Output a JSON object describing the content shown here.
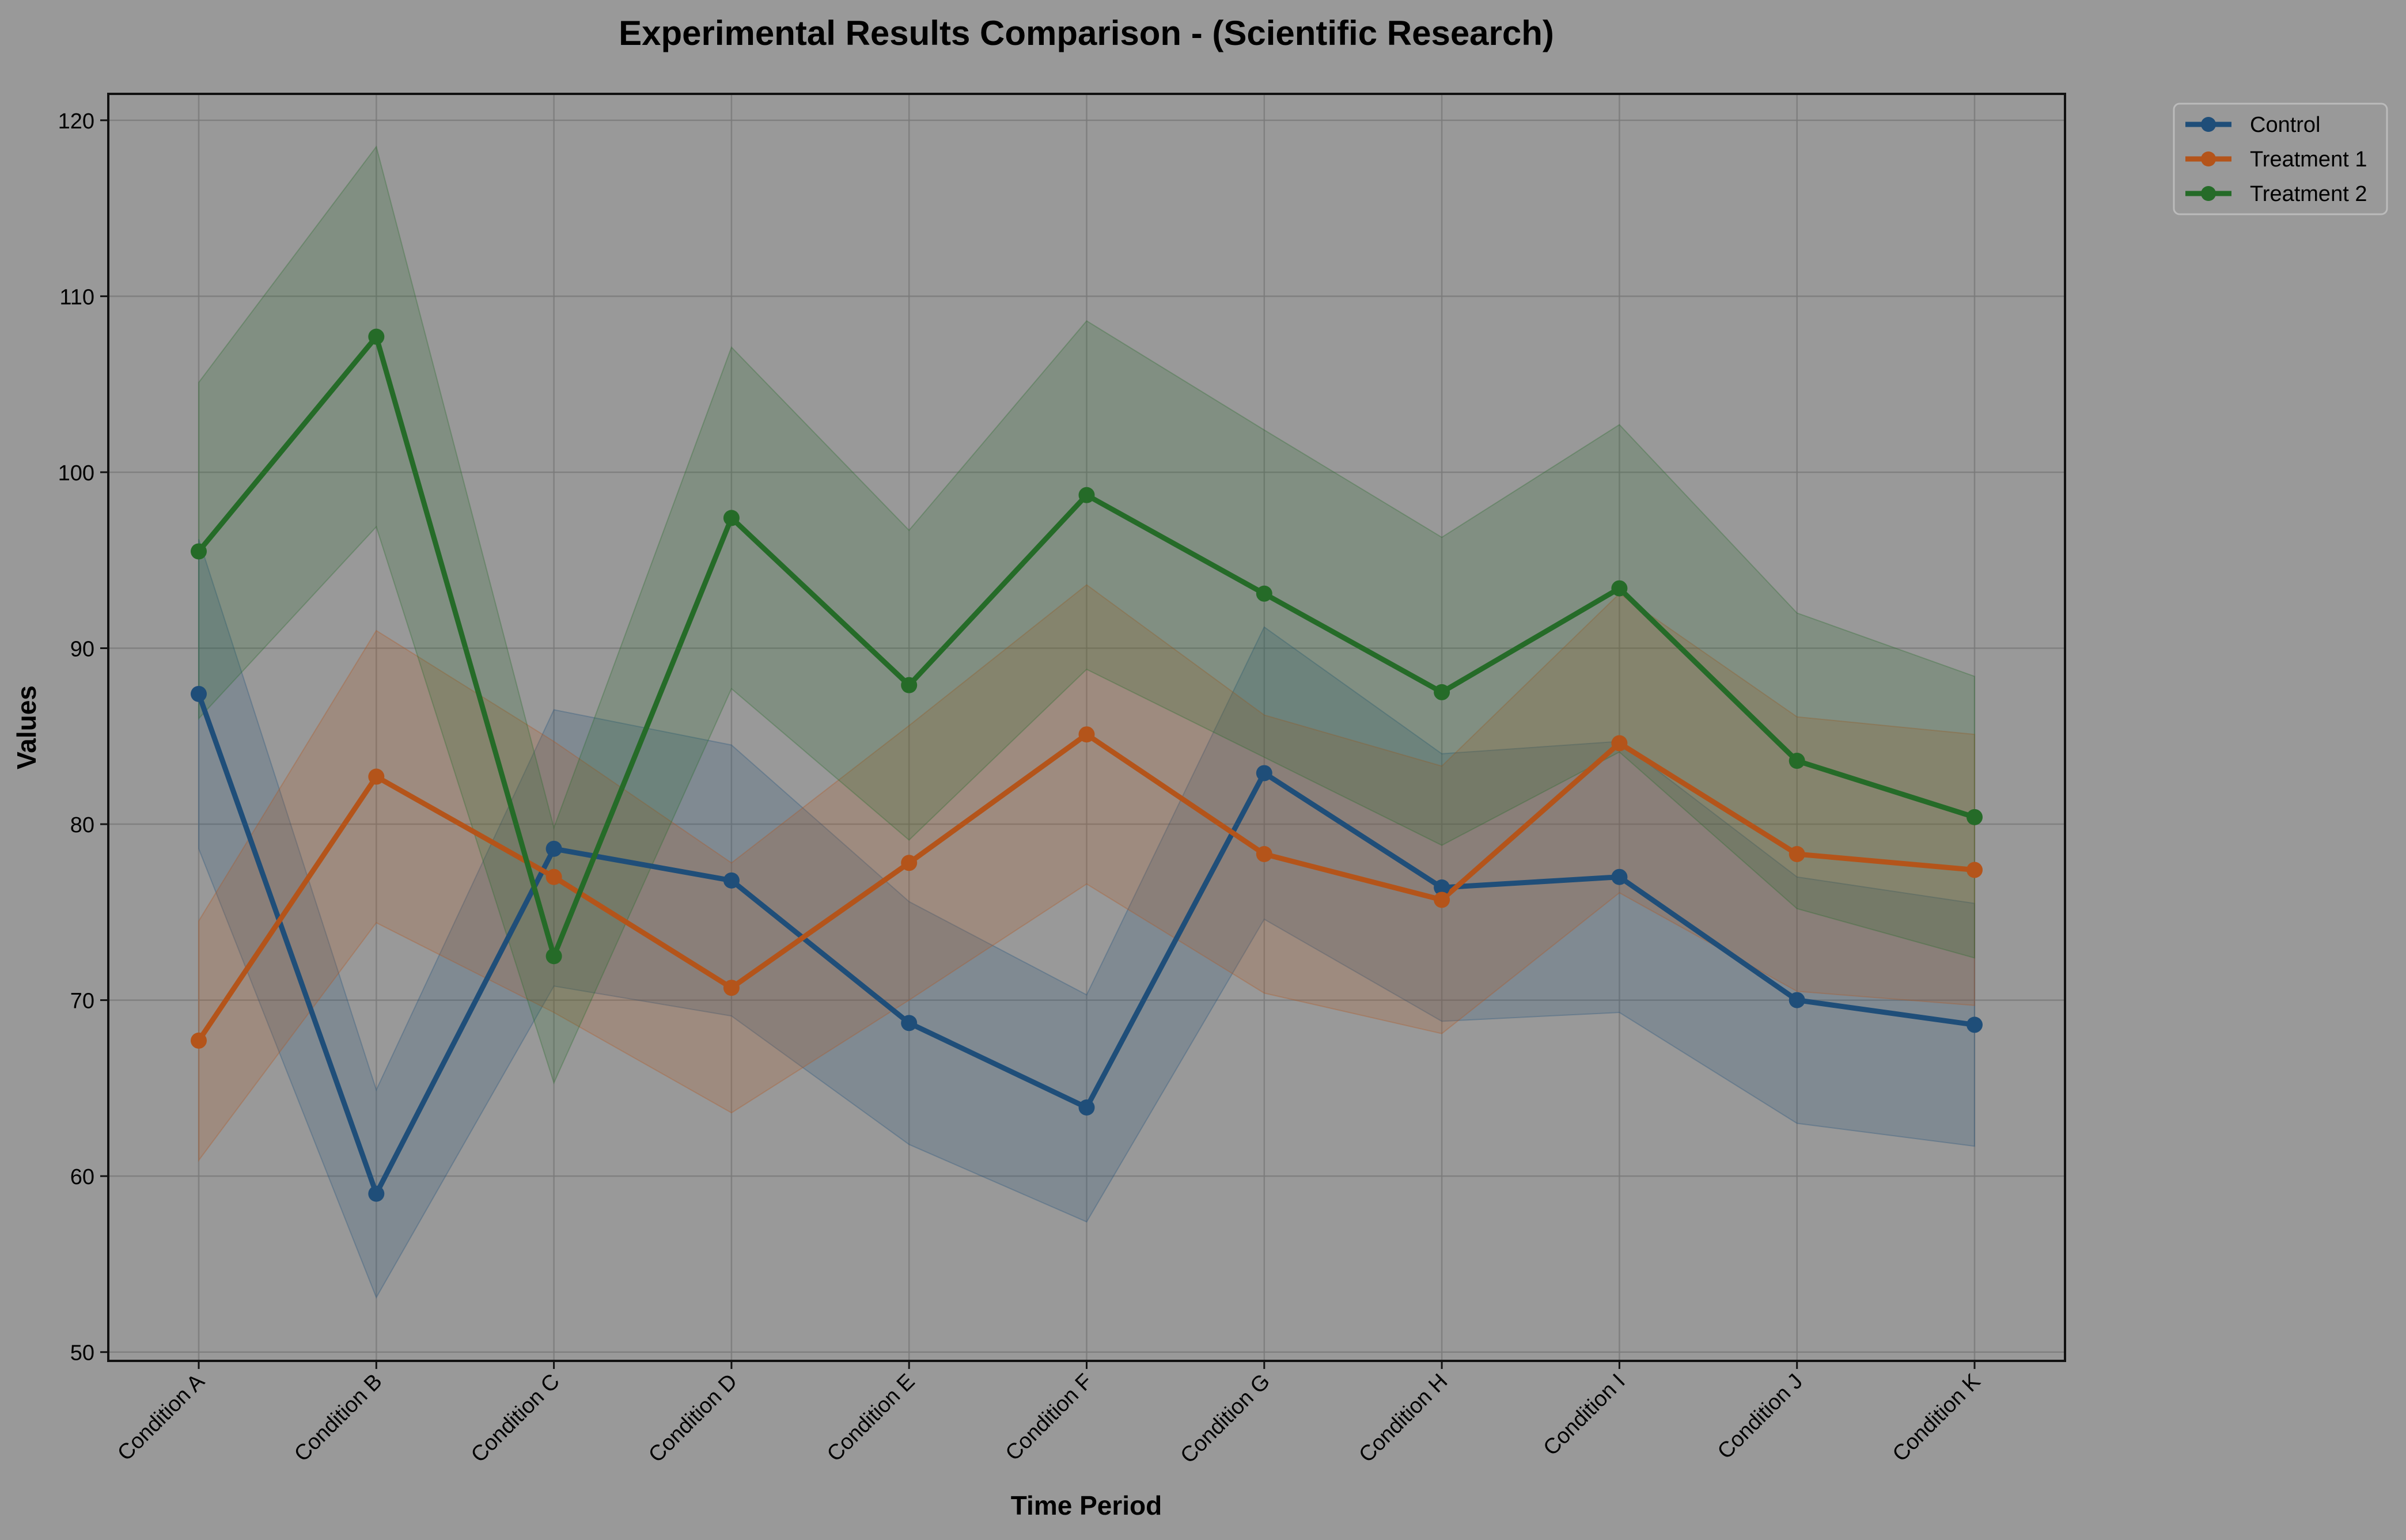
{
  "chart_data": {
    "type": "line",
    "title": "Experimental Results Comparison - (Scientific Research)",
    "xlabel": "Time Period",
    "ylabel": "Values",
    "ylim": [
      49.5,
      121.5
    ],
    "yticks": [
      50,
      60,
      70,
      80,
      90,
      100,
      110,
      120
    ],
    "grid": true,
    "legend_position": "upper-right-outside",
    "categories": [
      "Condition A",
      "Condition B",
      "Condition C",
      "Condition D",
      "Condition E",
      "Condition F",
      "Condition G",
      "Condition H",
      "Condition I",
      "Condition J",
      "Condition K"
    ],
    "series": [
      {
        "name": "Control",
        "color": "#1f4e79",
        "values": [
          87.4,
          59.0,
          78.6,
          76.8,
          68.7,
          63.9,
          82.9,
          76.4,
          77.0,
          70.0,
          68.6
        ],
        "lower": [
          78.6,
          53.1,
          70.8,
          69.1,
          61.8,
          57.4,
          74.6,
          68.8,
          69.3,
          63.0,
          61.7
        ],
        "upper": [
          96.2,
          64.9,
          86.5,
          84.5,
          75.6,
          70.3,
          91.2,
          84.0,
          84.7,
          77.0,
          75.5
        ]
      },
      {
        "name": "Treatment 1",
        "color": "#b4541a",
        "values": [
          67.7,
          82.7,
          77.0,
          70.7,
          77.8,
          85.1,
          78.3,
          75.7,
          84.6,
          78.3,
          77.4
        ],
        "lower": [
          60.9,
          74.4,
          69.3,
          63.6,
          70.0,
          76.6,
          70.4,
          68.1,
          76.1,
          70.5,
          69.7
        ],
        "upper": [
          74.5,
          91.0,
          84.7,
          77.8,
          85.6,
          93.6,
          86.2,
          83.3,
          93.1,
          86.1,
          85.1
        ]
      },
      {
        "name": "Treatment 2",
        "color": "#256b28",
        "values": [
          95.5,
          107.7,
          72.5,
          97.4,
          87.9,
          98.7,
          93.1,
          87.5,
          93.4,
          83.6,
          80.4
        ],
        "lower": [
          86.0,
          96.9,
          65.3,
          87.7,
          79.1,
          88.8,
          83.8,
          78.8,
          84.1,
          75.2,
          72.4
        ],
        "upper": [
          105.1,
          118.5,
          79.8,
          107.1,
          96.7,
          108.6,
          102.4,
          96.3,
          102.7,
          92.0,
          88.4
        ]
      }
    ]
  }
}
